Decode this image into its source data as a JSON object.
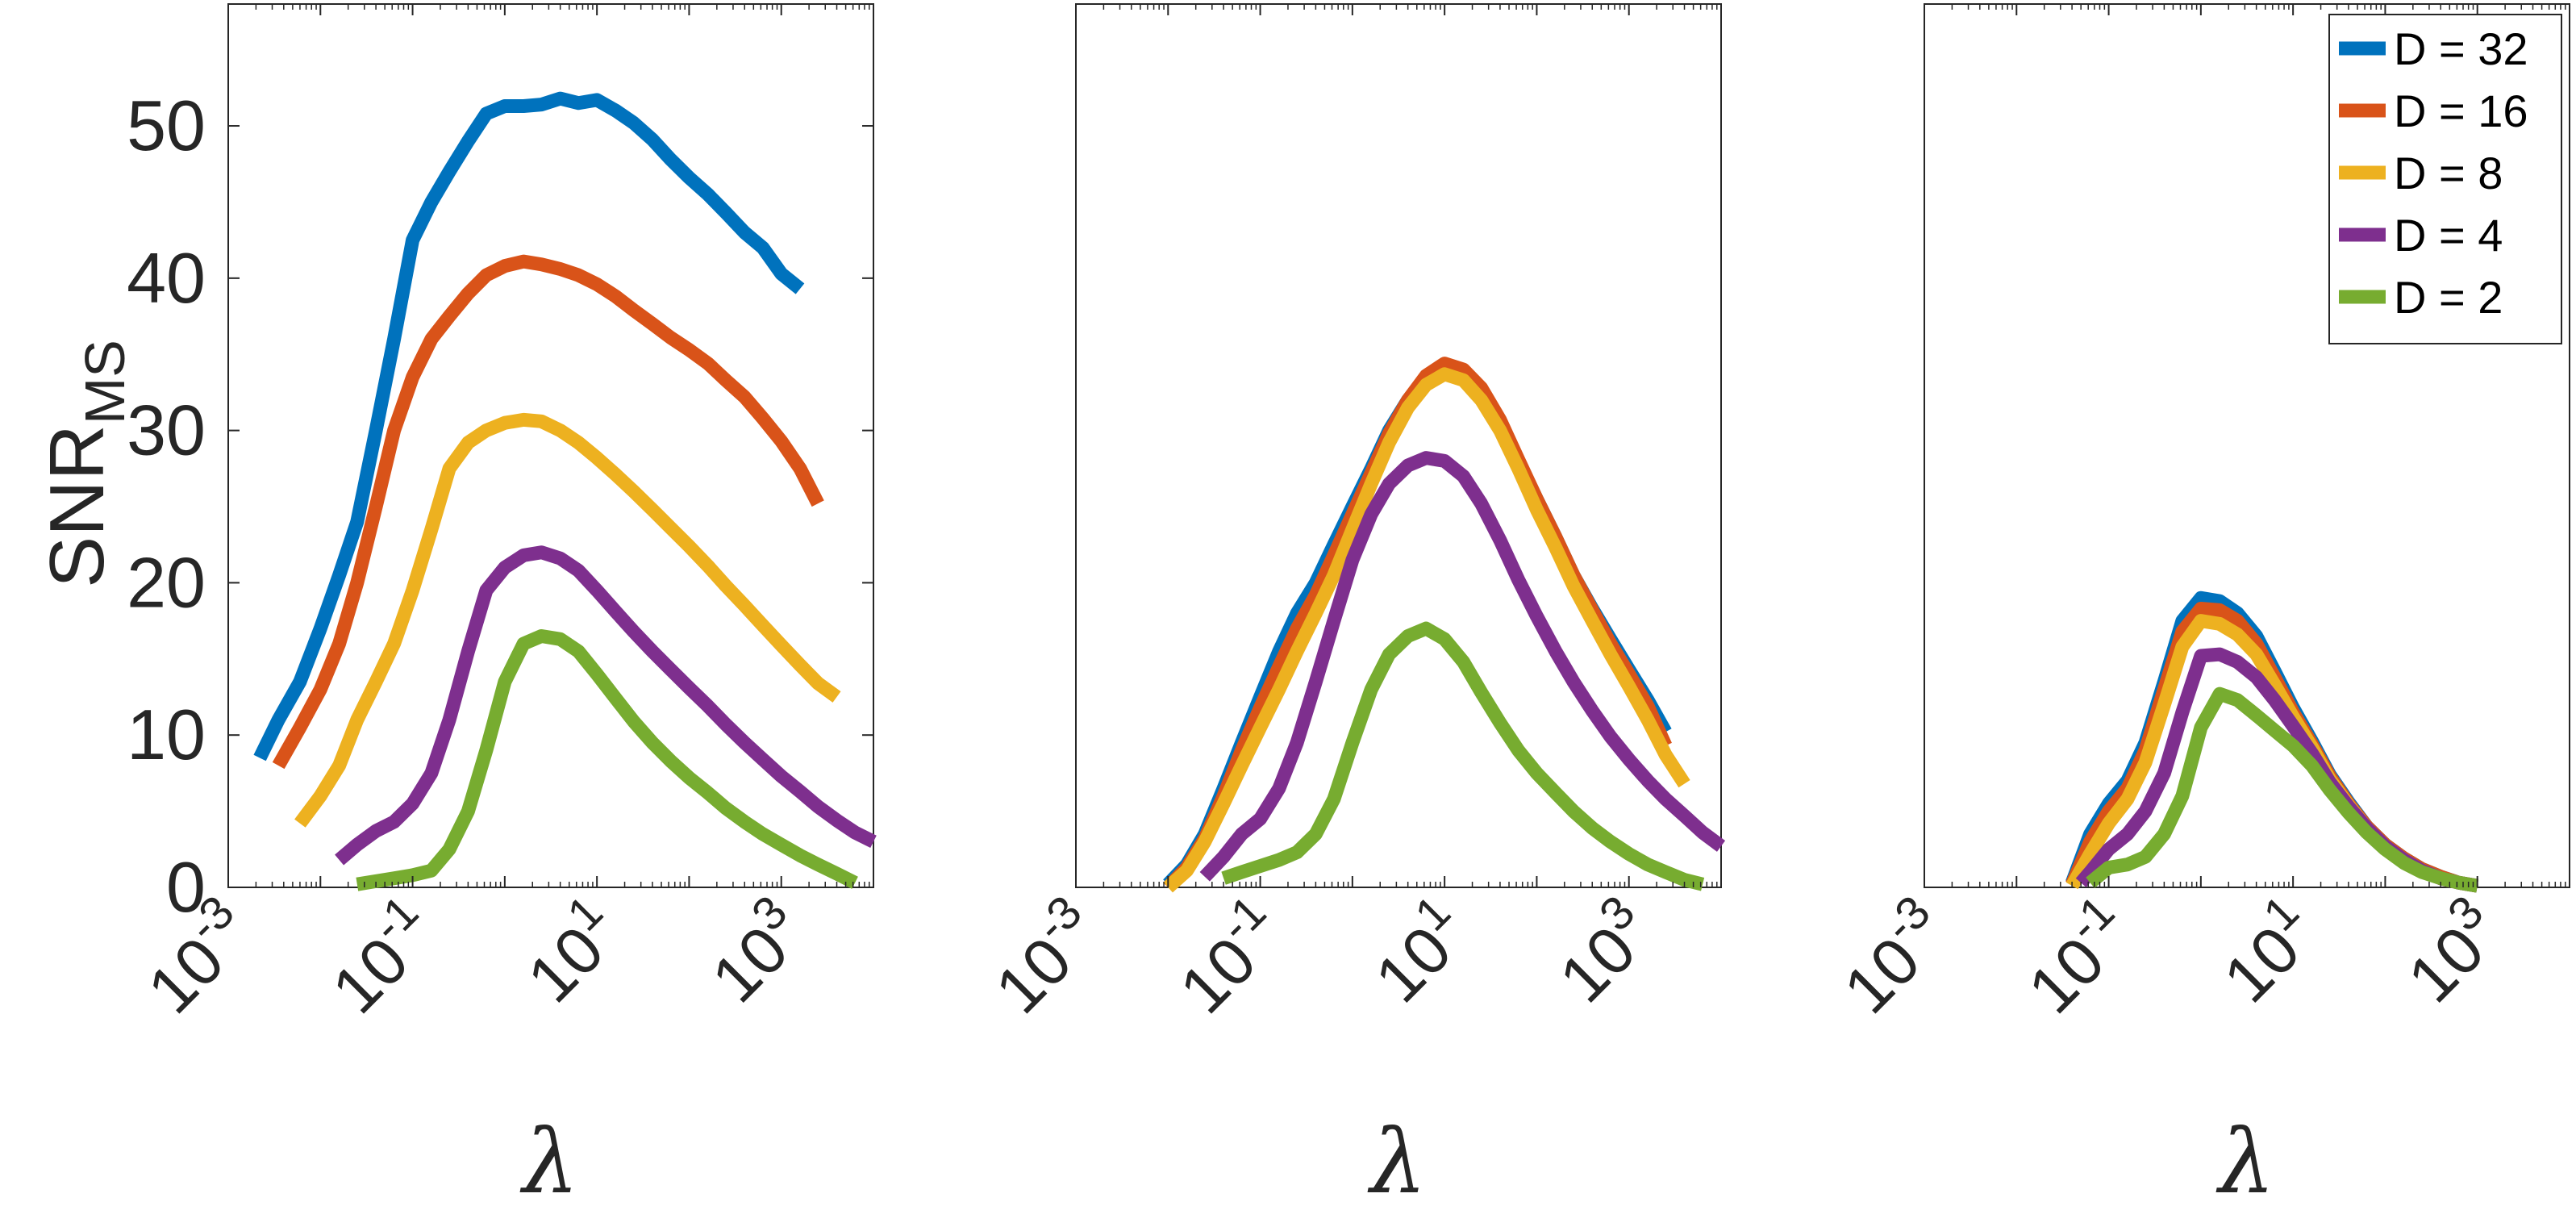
{
  "colors": {
    "D = 32": "#0072BD",
    "D = 16": "#D95319",
    "D = 8": "#EDB120",
    "D = 4": "#7E2F8E",
    "D = 2": "#77AC30",
    "axis": "#262626"
  },
  "chart_data": [
    {
      "type": "line",
      "xscale": "log",
      "xlabel": "λ",
      "ylabel": "SNR",
      "ylabel_subscript": "MS",
      "xlim": [
        0.001,
        10000
      ],
      "ylim": [
        0,
        58
      ],
      "xticks": [
        0.001,
        0.1,
        10,
        1000
      ],
      "xtick_base": "10",
      "xtick_exponents": [
        "-3",
        "-1",
        "1",
        "3"
      ],
      "yticks": [
        0,
        10,
        20,
        30,
        40,
        50
      ],
      "ytick_labels": [
        "0",
        "10",
        "20",
        "30",
        "40",
        "50"
      ],
      "grid": false,
      "legend": null,
      "series": [
        {
          "name": "D = 32",
          "x": [
            0.0022,
            0.0035,
            0.006,
            0.01,
            0.016,
            0.025,
            0.04,
            0.063,
            0.1,
            0.16,
            0.25,
            0.4,
            0.63,
            1,
            1.6,
            2.5,
            4,
            6.3,
            10,
            16,
            25,
            40,
            63,
            100,
            160,
            250,
            400,
            630,
            1000,
            1600
          ],
          "y": [
            8.5,
            11,
            13.5,
            17,
            20.5,
            24,
            30,
            36,
            42.5,
            45,
            47,
            49,
            50.8,
            51.3,
            51.3,
            51.4,
            51.8,
            51.5,
            51.7,
            51,
            50.2,
            49.1,
            47.8,
            46.6,
            45.5,
            44.3,
            43,
            42,
            40.3,
            39.3
          ]
        },
        {
          "name": "D = 16",
          "x": [
            0.0035,
            0.006,
            0.01,
            0.016,
            0.025,
            0.04,
            0.063,
            0.1,
            0.16,
            0.25,
            0.4,
            0.63,
            1,
            1.6,
            2.5,
            4,
            6.3,
            10,
            16,
            25,
            40,
            63,
            100,
            160,
            250,
            400,
            630,
            1000,
            1600,
            2500
          ],
          "y": [
            8,
            10.5,
            13,
            16,
            20,
            25,
            30,
            33.5,
            36,
            37.5,
            39,
            40.2,
            40.8,
            41.1,
            40.9,
            40.6,
            40.2,
            39.6,
            38.8,
            37.9,
            37,
            36.1,
            35.3,
            34.4,
            33.3,
            32.2,
            30.8,
            29.3,
            27.5,
            25.2
          ]
        },
        {
          "name": "D = 8",
          "x": [
            0.006,
            0.01,
            0.016,
            0.025,
            0.04,
            0.063,
            0.1,
            0.16,
            0.25,
            0.4,
            0.63,
            1,
            1.6,
            2.5,
            4,
            6.3,
            10,
            16,
            25,
            40,
            63,
            100,
            160,
            250,
            400,
            630,
            1000,
            1600,
            2500,
            4000
          ],
          "y": [
            4.2,
            6,
            8,
            11,
            13.5,
            16,
            19.5,
            23.5,
            27.5,
            29.2,
            30,
            30.5,
            30.7,
            30.6,
            30,
            29.2,
            28.2,
            27.1,
            26,
            24.8,
            23.6,
            22.4,
            21.1,
            19.8,
            18.5,
            17.2,
            15.9,
            14.6,
            13.4,
            12.5
          ]
        },
        {
          "name": "D = 4",
          "x": [
            0.016,
            0.025,
            0.04,
            0.063,
            0.1,
            0.16,
            0.25,
            0.4,
            0.63,
            1,
            1.6,
            2.5,
            4,
            6.3,
            10,
            16,
            25,
            40,
            63,
            100,
            160,
            250,
            400,
            630,
            1000,
            1600,
            2500,
            4000,
            6300,
            10000
          ],
          "y": [
            1.8,
            2.8,
            3.7,
            4.3,
            5.5,
            7.5,
            11,
            15.5,
            19.5,
            21,
            21.8,
            22,
            21.6,
            20.8,
            19.5,
            18.1,
            16.8,
            15.5,
            14.3,
            13.1,
            11.9,
            10.7,
            9.5,
            8.4,
            7.3,
            6.3,
            5.3,
            4.4,
            3.6,
            3
          ]
        },
        {
          "name": "D = 2",
          "x": [
            0.025,
            0.04,
            0.063,
            0.1,
            0.16,
            0.25,
            0.4,
            0.63,
            1,
            1.6,
            2.5,
            4,
            6.3,
            10,
            16,
            25,
            40,
            63,
            100,
            160,
            250,
            400,
            630,
            1000,
            1600,
            2500,
            4000,
            6300
          ],
          "y": [
            0.2,
            0.4,
            0.6,
            0.8,
            1.1,
            2.5,
            5,
            9,
            13.5,
            16,
            16.5,
            16.3,
            15.5,
            14,
            12.4,
            10.9,
            9.5,
            8.3,
            7.2,
            6.2,
            5.2,
            4.3,
            3.5,
            2.8,
            2.1,
            1.5,
            0.9,
            0.3
          ]
        }
      ]
    },
    {
      "type": "line",
      "xscale": "log",
      "xlabel": "λ",
      "xlim": [
        0.001,
        10000
      ],
      "ylim": [
        0,
        58
      ],
      "xticks": [
        0.001,
        0.1,
        10,
        1000
      ],
      "xtick_base": "10",
      "xtick_exponents": [
        "-3",
        "-1",
        "1",
        "3"
      ],
      "yticks": [],
      "grid": false,
      "legend": null,
      "series": [
        {
          "name": "D = 32",
          "x": [
            0.01,
            0.016,
            0.025,
            0.04,
            0.063,
            0.1,
            0.16,
            0.25,
            0.4,
            0.63,
            1,
            1.6,
            2.5,
            4,
            6.3,
            10,
            16,
            25,
            40,
            63,
            100,
            160,
            250,
            400,
            630,
            1000,
            1600,
            2500
          ],
          "y": [
            0.2,
            1.5,
            3.5,
            6.5,
            9.5,
            12.5,
            15.5,
            18,
            20,
            22.5,
            25,
            27.5,
            30,
            32,
            33.5,
            34.2,
            33.8,
            32.5,
            30.5,
            28,
            25.5,
            23,
            20.5,
            18.3,
            16.3,
            14.3,
            12.3,
            10.2
          ]
        },
        {
          "name": "D = 16",
          "x": [
            0.01,
            0.016,
            0.025,
            0.04,
            0.063,
            0.1,
            0.16,
            0.25,
            0.4,
            0.63,
            1,
            1.6,
            2.5,
            4,
            6.3,
            10,
            16,
            25,
            40,
            63,
            100,
            160,
            250,
            400,
            630,
            1000,
            1600,
            2500
          ],
          "y": [
            0,
            1.3,
            3.2,
            6,
            9,
            11.8,
            14.5,
            17,
            19.2,
            21.8,
            24.5,
            27.2,
            29.8,
            32,
            33.6,
            34.4,
            34,
            32.8,
            30.7,
            28.1,
            25.5,
            23,
            20.5,
            18.2,
            16,
            14,
            11.9,
            9.3
          ]
        },
        {
          "name": "D = 8",
          "x": [
            0.01,
            0.016,
            0.025,
            0.04,
            0.063,
            0.1,
            0.16,
            0.25,
            0.4,
            0.63,
            1,
            1.6,
            2.5,
            4,
            6.3,
            10,
            16,
            25,
            40,
            63,
            100,
            160,
            250,
            400,
            630,
            1000,
            1600,
            2500,
            4000
          ],
          "y": [
            0,
            1.1,
            3,
            5.5,
            8,
            10.5,
            13,
            15.5,
            18,
            20.5,
            23.5,
            26.5,
            29.2,
            31.5,
            33,
            33.7,
            33.3,
            32,
            30,
            27.5,
            24.8,
            22.3,
            19.8,
            17.5,
            15.3,
            13.2,
            11,
            8.7,
            6.8
          ]
        },
        {
          "name": "D = 4",
          "x": [
            0.025,
            0.04,
            0.063,
            0.1,
            0.16,
            0.25,
            0.4,
            0.63,
            1,
            1.6,
            2.5,
            4,
            6.3,
            10,
            16,
            25,
            40,
            63,
            100,
            160,
            250,
            400,
            630,
            1000,
            1600,
            2500,
            4000,
            6300,
            10000
          ],
          "y": [
            0.7,
            2,
            3.5,
            4.5,
            6.5,
            9.5,
            13.5,
            17.5,
            21.5,
            24.5,
            26.5,
            27.7,
            28.2,
            28,
            27,
            25.2,
            22.8,
            20.2,
            17.8,
            15.5,
            13.5,
            11.6,
            9.9,
            8.4,
            7,
            5.8,
            4.7,
            3.6,
            2.7
          ]
        },
        {
          "name": "D = 2",
          "x": [
            0.04,
            0.063,
            0.1,
            0.16,
            0.25,
            0.4,
            0.63,
            1,
            1.6,
            2.5,
            4,
            6.3,
            10,
            16,
            25,
            40,
            63,
            100,
            160,
            250,
            400,
            630,
            1000,
            1600,
            2500,
            4000,
            6300
          ],
          "y": [
            0.6,
            1,
            1.4,
            1.8,
            2.3,
            3.5,
            5.8,
            9.5,
            13,
            15.3,
            16.5,
            17,
            16.3,
            14.8,
            12.8,
            10.8,
            9,
            7.5,
            6.2,
            5,
            3.9,
            3,
            2.2,
            1.5,
            1,
            0.5,
            0.2
          ]
        }
      ]
    },
    {
      "type": "line",
      "xscale": "log",
      "xlabel": "λ",
      "xlim": [
        0.001,
        10000
      ],
      "ylim": [
        0,
        58
      ],
      "xticks": [
        0.001,
        0.1,
        10,
        1000
      ],
      "xtick_base": "10",
      "xtick_exponents": [
        "-3",
        "-1",
        "1",
        "3"
      ],
      "yticks": [],
      "grid": false,
      "legend": "top-right",
      "series": [
        {
          "name": "D = 32",
          "x": [
            0.04,
            0.063,
            0.1,
            0.16,
            0.25,
            0.4,
            0.63,
            1,
            1.6,
            2.5,
            4,
            6.3,
            10,
            16,
            25,
            40,
            63,
            100,
            160,
            250,
            400,
            630,
            1000
          ],
          "y": [
            0.3,
            3.5,
            5.5,
            7,
            9.5,
            13.5,
            17.5,
            19,
            18.8,
            18,
            16.5,
            14.2,
            11.8,
            9.6,
            7.4,
            5.6,
            4,
            2.8,
            1.9,
            1.2,
            0.7,
            0.3,
            0.1
          ]
        },
        {
          "name": "D = 16",
          "x": [
            0.04,
            0.063,
            0.1,
            0.16,
            0.25,
            0.4,
            0.63,
            1,
            1.6,
            2.5,
            4,
            6.3,
            10,
            16,
            25,
            40,
            63,
            100,
            160,
            250,
            400,
            630,
            1000
          ],
          "y": [
            0.2,
            3,
            5,
            6.5,
            9,
            13,
            16.8,
            18.3,
            18.2,
            17.5,
            16,
            13.8,
            11.5,
            9.4,
            7.3,
            5.5,
            4,
            2.8,
            1.9,
            1.2,
            0.7,
            0.3,
            0.1
          ]
        },
        {
          "name": "D = 8",
          "x": [
            0.04,
            0.063,
            0.1,
            0.16,
            0.25,
            0.4,
            0.63,
            1,
            1.6,
            2.5,
            4,
            6.3,
            10,
            16,
            25,
            40,
            63,
            100,
            160,
            250,
            400,
            630,
            1000
          ],
          "y": [
            0.1,
            2.2,
            4.2,
            5.8,
            8.2,
            12,
            15.8,
            17.5,
            17.3,
            16.6,
            15.3,
            13.3,
            11.2,
            9.2,
            7.1,
            5.4,
            3.9,
            2.7,
            1.8,
            1.1,
            0.6,
            0.3,
            0.1
          ]
        },
        {
          "name": "D = 4",
          "x": [
            0.05,
            0.063,
            0.1,
            0.16,
            0.25,
            0.4,
            0.63,
            1,
            1.6,
            2.5,
            4,
            6.3,
            10,
            16,
            25,
            40,
            63,
            100,
            160,
            250,
            400,
            630,
            1000
          ],
          "y": [
            0.3,
            1,
            2.5,
            3.5,
            5,
            7.5,
            11.5,
            15.2,
            15.3,
            14.8,
            13.8,
            12.3,
            10.6,
            8.8,
            6.9,
            5.3,
            3.9,
            2.7,
            1.8,
            1.1,
            0.6,
            0.3,
            0.1
          ]
        },
        {
          "name": "D = 2",
          "x": [
            0.063,
            0.1,
            0.16,
            0.25,
            0.4,
            0.63,
            1,
            1.6,
            2.5,
            4,
            6.3,
            10,
            16,
            25,
            40,
            63,
            100,
            160,
            250,
            400,
            630,
            1000
          ],
          "y": [
            0.3,
            1.3,
            1.5,
            2,
            3.5,
            6,
            10.5,
            12.7,
            12.3,
            11.3,
            10.3,
            9.3,
            8,
            6.4,
            4.9,
            3.6,
            2.5,
            1.6,
            1,
            0.6,
            0.3,
            0.1
          ]
        }
      ]
    }
  ],
  "legend_entries": [
    "D = 32",
    "D = 16",
    "D = 8",
    "D = 4",
    "D = 2"
  ]
}
